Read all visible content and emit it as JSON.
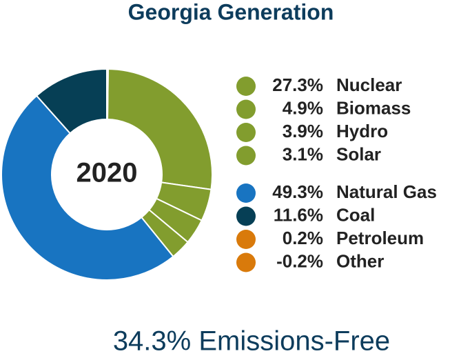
{
  "chart_data": {
    "type": "pie",
    "title": "Georgia Generation",
    "center_label": "2020",
    "footnote": "34.3% Emissions-Free",
    "categories": [
      "Nuclear",
      "Biomass",
      "Hydro",
      "Solar",
      "Natural Gas",
      "Coal",
      "Petroleum",
      "Other"
    ],
    "values": [
      27.3,
      4.9,
      3.9,
      3.1,
      49.3,
      11.6,
      0.2,
      -0.2
    ],
    "value_labels": [
      "27.3%",
      "4.9%",
      "3.9%",
      "3.1%",
      "49.3%",
      "11.6%",
      "0.2%",
      "-0.2%"
    ],
    "colors": [
      "#829d2e",
      "#829d2e",
      "#829d2e",
      "#829d2e",
      "#1874c1",
      "#063f55",
      "#d97a0b",
      "#d97a0b"
    ]
  }
}
